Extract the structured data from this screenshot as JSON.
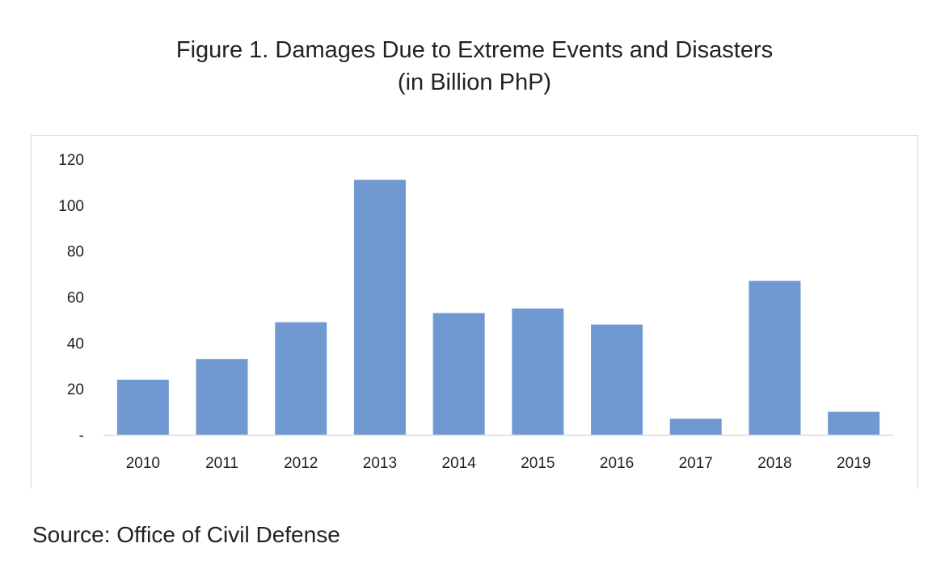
{
  "title_line1": "Figure 1. Damages Due to Extreme Events and Disasters",
  "title_line2": "(in Billion PhP)",
  "source": "Source: Office of Civil Defense",
  "chart_data": {
    "type": "bar",
    "categories": [
      "2010",
      "2011",
      "2012",
      "2013",
      "2014",
      "2015",
      "2016",
      "2017",
      "2018",
      "2019"
    ],
    "values": [
      24,
      33,
      49,
      111,
      53,
      55,
      48,
      7,
      67,
      10
    ],
    "ylim": [
      0,
      120
    ],
    "yticks": [
      0,
      20,
      40,
      60,
      80,
      100,
      120
    ],
    "ytick_labels": [
      "-",
      "20",
      "40",
      "60",
      "80",
      "100",
      "120"
    ],
    "grid": false,
    "bar_color": "#7099d1",
    "axis_color": "#d9d9d9"
  }
}
